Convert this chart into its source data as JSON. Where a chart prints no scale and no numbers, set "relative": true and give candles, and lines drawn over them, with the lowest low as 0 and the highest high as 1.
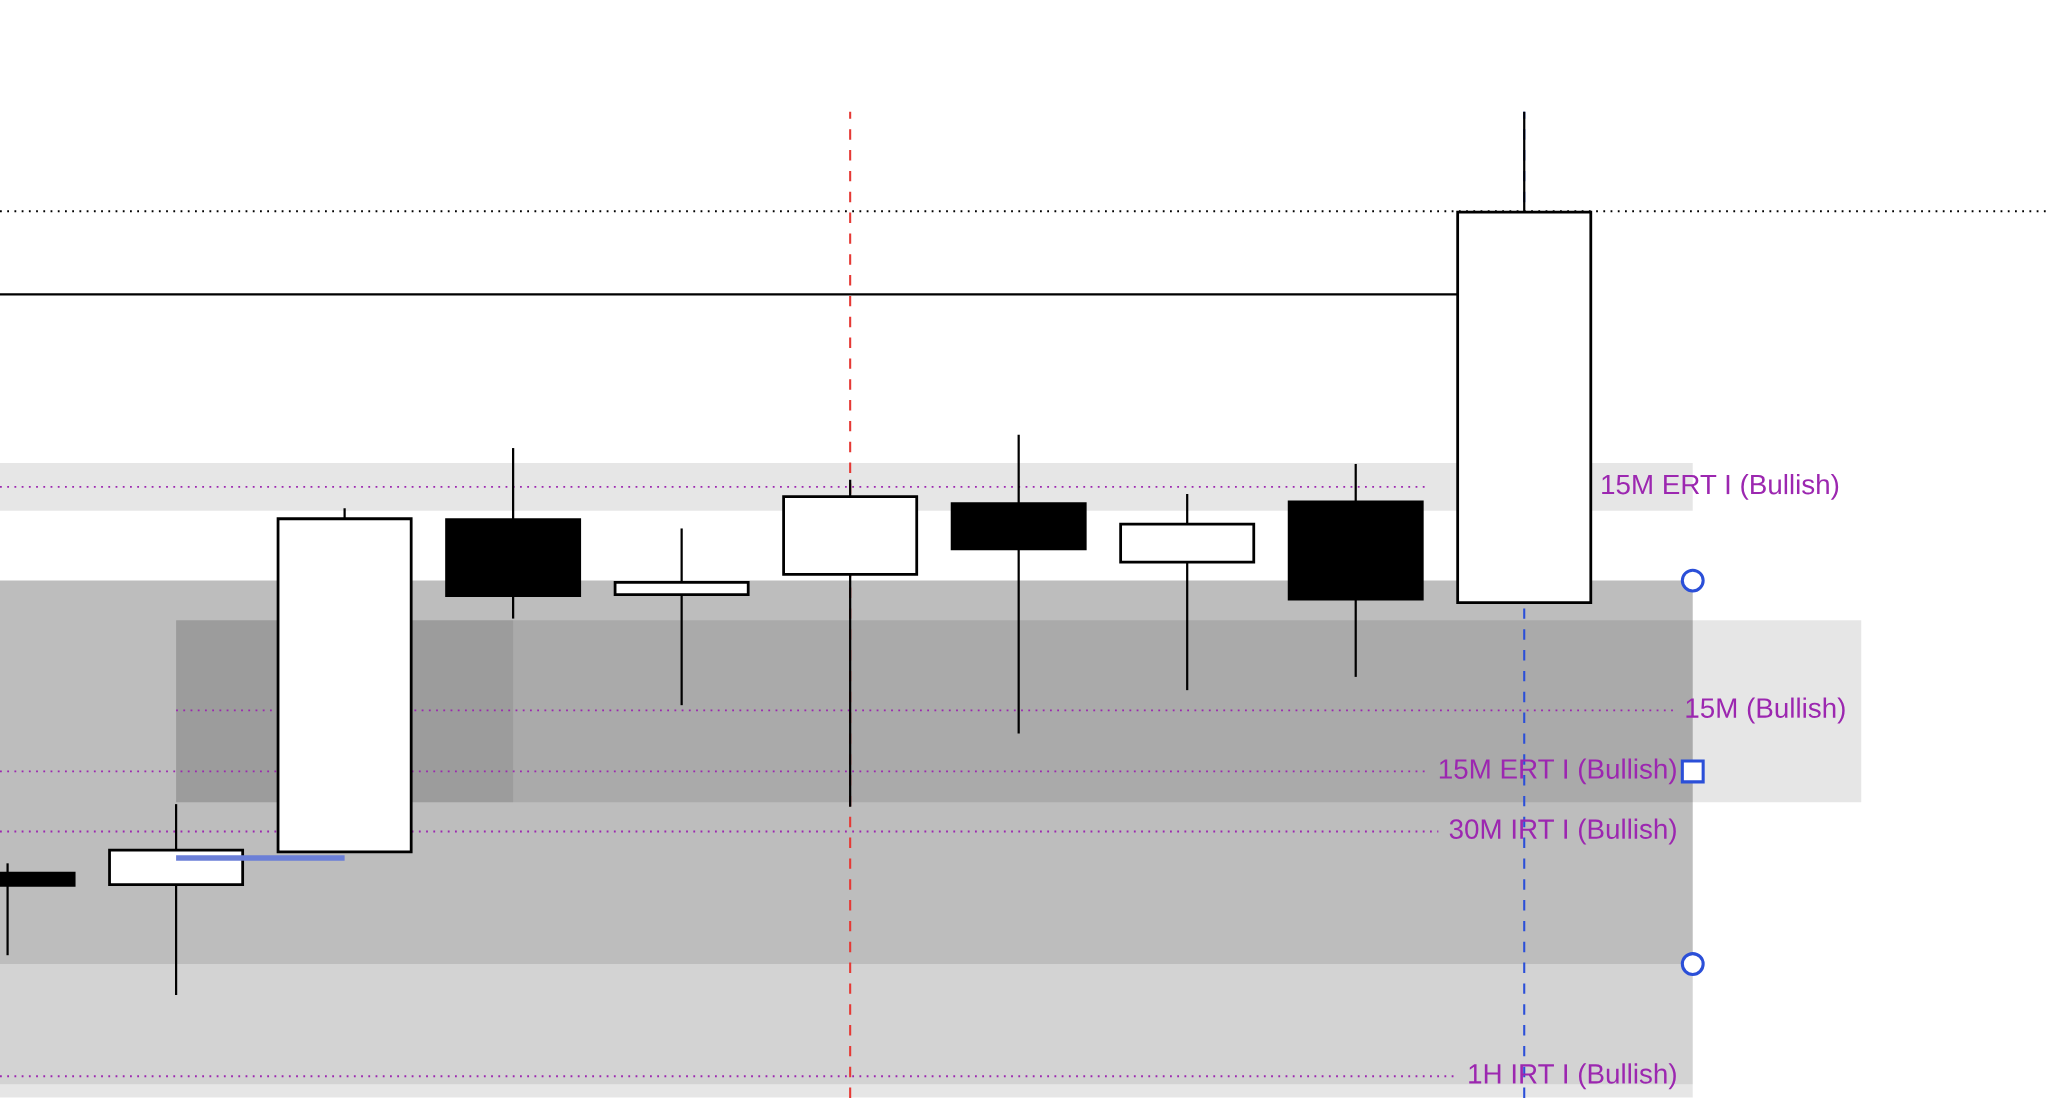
{
  "chart_data": {
    "type": "candlestick",
    "relative": true,
    "tick_labels": false,
    "categories": [
      null,
      null,
      null,
      null,
      null,
      null,
      null,
      null,
      null,
      null
    ],
    "ohlc": [
      [
        0.138,
        0.149,
        0.045,
        0.124
      ],
      [
        0.125,
        0.216,
        0.0,
        0.164
      ],
      [
        0.162,
        0.551,
        0.161,
        0.539
      ],
      [
        0.538,
        0.619,
        0.426,
        0.452
      ],
      [
        0.453,
        0.528,
        0.328,
        0.467
      ],
      [
        0.476,
        0.583,
        0.213,
        0.564
      ],
      [
        0.556,
        0.634,
        0.296,
        0.505
      ],
      [
        0.49,
        0.567,
        0.345,
        0.533
      ],
      [
        0.558,
        0.601,
        0.36,
        0.448
      ],
      [
        0.444,
        1.0,
        0.444,
        0.886
      ]
    ],
    "series": [
      {
        "type": "line",
        "color": "#6b7fd7",
        "values": [
          null,
          0.155,
          0.155,
          null,
          null,
          null,
          null,
          null,
          null,
          null
        ]
      }
    ],
    "ref_lines": [
      {
        "axis": "y",
        "value": 0.887,
        "color": "#000000",
        "line_style": "dotted"
      },
      {
        "axis": "y",
        "value": 0.793,
        "color": "#000000",
        "line_style": "solid"
      },
      {
        "axis": "y",
        "value": 0.575,
        "label": "15M ERT I (Bullish)",
        "color": "#9c27b0",
        "line_style": "dotted"
      },
      {
        "axis": "y",
        "value": 0.322,
        "label": "15M (Bullish)",
        "color": "#9c27b0",
        "line_style": "dotted"
      },
      {
        "axis": "y",
        "value": 0.253,
        "label": "15M ERT I (Bullish)",
        "color": "#9c27b0",
        "line_style": "dotted"
      },
      {
        "axis": "y",
        "value": 0.185,
        "label": "30M IRT I (Bullish)",
        "color": "#9c27b0",
        "line_style": "dotted"
      },
      {
        "axis": "y",
        "value": -0.092,
        "label": "1H IRT I (Bullish)",
        "color": "#9c27b0",
        "line_style": "dotted"
      }
    ],
    "bands": [
      {
        "axis": "y",
        "from": 0.548,
        "to": 0.602,
        "color": "#e6e6e6"
      },
      {
        "axis": "y",
        "from": 0.035,
        "to": 0.469,
        "color": "#bdbdbd"
      },
      {
        "axis": "y",
        "from": 0.218,
        "to": 0.424,
        "color": "#e6e6e6"
      },
      {
        "axis": "y",
        "from": 0.218,
        "to": 0.424,
        "color": "#ebebeb"
      },
      {
        "axis": "y",
        "from": -0.101,
        "to": 0.035,
        "color": "#d3d3d3"
      },
      {
        "axis": "y",
        "from": -0.116,
        "to": -0.101,
        "color": "#e6e6e6"
      }
    ]
  }
}
